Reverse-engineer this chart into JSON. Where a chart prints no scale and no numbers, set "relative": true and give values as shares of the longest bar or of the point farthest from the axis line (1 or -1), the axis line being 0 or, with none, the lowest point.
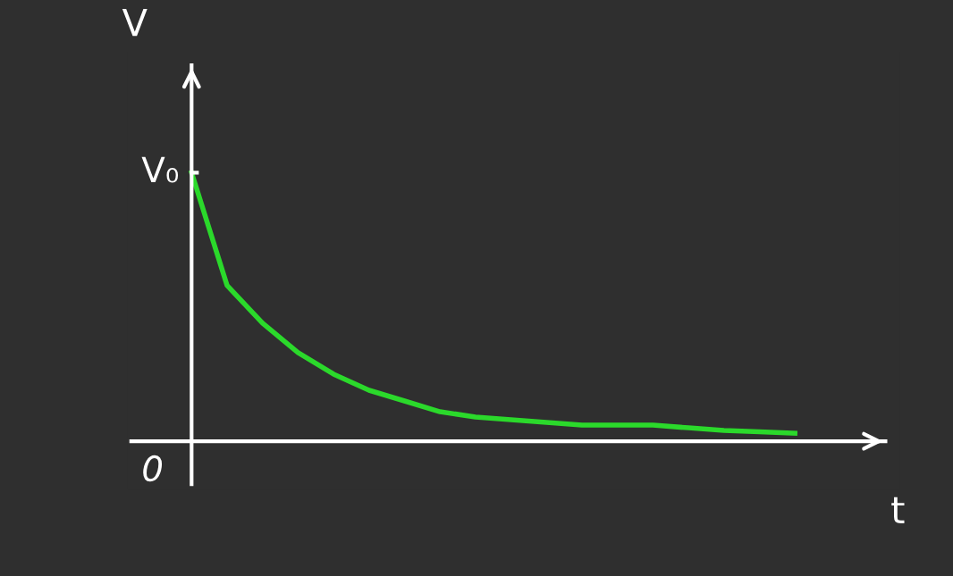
{
  "chart_data": {
    "type": "line",
    "relative": true,
    "xlabel": "t",
    "ylabel": "V",
    "categories": [
      null,
      null,
      null,
      null,
      null,
      null,
      null,
      null,
      null,
      null,
      null,
      null,
      null,
      null,
      null,
      null,
      null,
      null
    ],
    "series": [
      {
        "color": "#2bd92b",
        "values": [
          1.0,
          0.58,
          0.44,
          0.33,
          0.25,
          0.19,
          0.15,
          0.11,
          0.09,
          0.08,
          0.07,
          0.06,
          0.06,
          0.06,
          0.05,
          0.04,
          0.035,
          0.03
        ]
      }
    ],
    "annotations": [
      "V₀",
      "0"
    ],
    "legend": false,
    "marker": "none",
    "line_style": "solid"
  }
}
